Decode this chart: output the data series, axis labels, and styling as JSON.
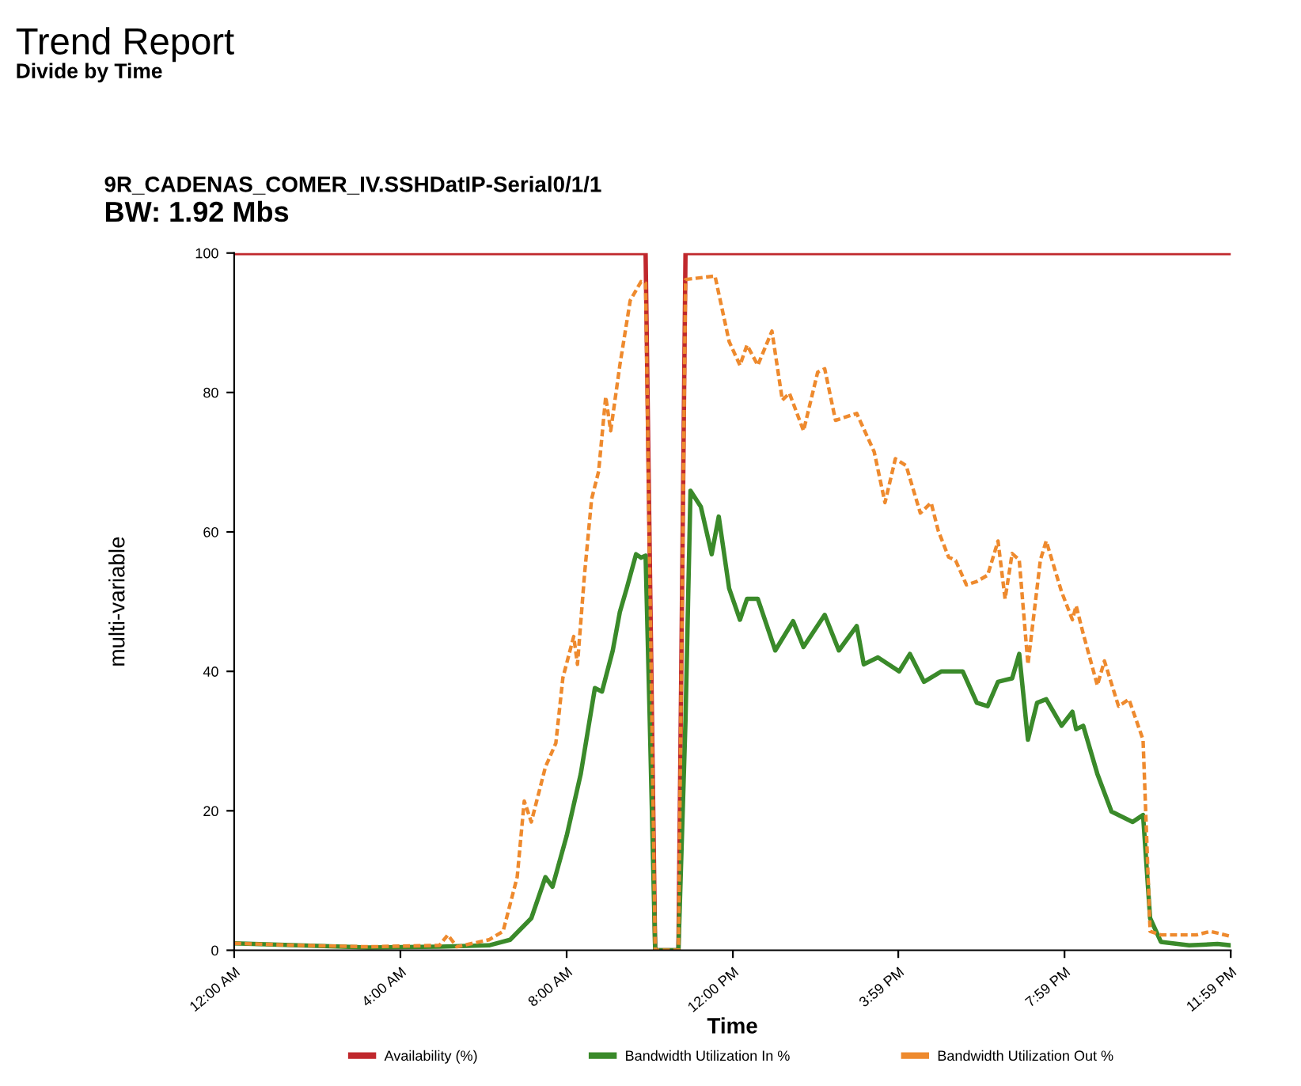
{
  "chart_data": {
    "type": "line",
    "title": "Trend Report",
    "subtitle": "Divide by Time",
    "annotations": [
      "9R_CADENAS_COMER_IV.SSHDatIP-Serial0/1/1",
      "BW: 1.92 Mbs"
    ],
    "xlabel": "Time",
    "ylabel": "multi-variable",
    "xlim": [
      0,
      23.98
    ],
    "xticks": [
      {
        "value": 0,
        "label": "12:00 AM"
      },
      {
        "value": 4,
        "label": "4:00 AM"
      },
      {
        "value": 8,
        "label": "8:00 AM"
      },
      {
        "value": 12,
        "label": "12:00 PM"
      },
      {
        "value": 15.98,
        "label": "3:59 PM"
      },
      {
        "value": 19.98,
        "label": "7:59 PM"
      },
      {
        "value": 23.98,
        "label": "11:59 PM"
      }
    ],
    "ylim": [
      0,
      100
    ],
    "yticks": [
      0,
      20,
      40,
      60,
      80,
      100
    ],
    "grid": false,
    "legend": "bottom",
    "marker": "none",
    "series": [
      {
        "name": "Availability (%)",
        "color": "#c0282d",
        "line_style": "solid",
        "x": [
          0,
          9.9,
          10.13,
          10.69,
          10.86,
          23.98
        ],
        "values": [
          100,
          100,
          0,
          0,
          100,
          100
        ]
      },
      {
        "name": "Bandwidth Utilization In %",
        "color": "#3a8a2a",
        "line_style": "solid",
        "x": [
          0,
          1.53,
          3.23,
          4.94,
          6.13,
          6.64,
          7.15,
          7.49,
          7.66,
          8.0,
          8.34,
          8.68,
          8.85,
          9.11,
          9.28,
          9.45,
          9.67,
          9.79,
          9.9,
          10.0,
          10.13,
          10.69,
          10.86,
          10.98,
          11.23,
          11.49,
          11.66,
          11.91,
          12.17,
          12.34,
          12.6,
          13.02,
          13.45,
          13.7,
          14.21,
          14.55,
          14.98,
          15.15,
          15.49,
          16.0,
          16.26,
          16.6,
          17.02,
          17.53,
          17.87,
          18.13,
          18.38,
          18.72,
          18.89,
          19.1,
          19.32,
          19.54,
          19.91,
          20.17,
          20.26,
          20.43,
          20.77,
          21.11,
          21.62,
          21.87,
          22.04,
          22.3,
          22.98,
          23.66,
          23.98
        ],
        "values": [
          1.0,
          0.7,
          0.4,
          0.5,
          0.7,
          1.5,
          4.6,
          10.5,
          9.1,
          16.4,
          25.3,
          37.6,
          37.1,
          43,
          48.5,
          52,
          56.8,
          56.3,
          56.6,
          33,
          0,
          0,
          33,
          65.9,
          63.6,
          56.8,
          62.2,
          51.9,
          47.4,
          50.4,
          50.4,
          43,
          47.2,
          43.5,
          48.1,
          43,
          46.5,
          41,
          42,
          40,
          42.5,
          38.5,
          40,
          40,
          35.5,
          35,
          38.5,
          39,
          42.5,
          30.2,
          35.5,
          36,
          32.2,
          34.2,
          31.7,
          32.2,
          25.3,
          19.9,
          18.4,
          19.4,
          4.6,
          1.2,
          0.7,
          0.9,
          0.7
        ]
      },
      {
        "name": "Bandwidth Utilization Out %",
        "color": "#ee8a2e",
        "line_style": "dashed",
        "x": [
          0,
          1.53,
          3.23,
          4.94,
          5.14,
          5.36,
          6.13,
          6.47,
          6.81,
          6.98,
          7.15,
          7.49,
          7.74,
          7.91,
          8.17,
          8.26,
          8.43,
          8.6,
          8.77,
          8.94,
          9.06,
          9.28,
          9.53,
          9.79,
          9.9,
          10.13,
          10.69,
          10.86,
          11.57,
          11.91,
          12.17,
          12.34,
          12.6,
          12.94,
          13.19,
          13.36,
          13.7,
          14.04,
          14.21,
          14.47,
          14.98,
          15.4,
          15.66,
          15.91,
          16.17,
          16.51,
          16.77,
          16.94,
          17.19,
          17.36,
          17.62,
          17.87,
          18.13,
          18.38,
          18.55,
          18.72,
          18.89,
          19.1,
          19.4,
          19.54,
          19.91,
          20.17,
          20.26,
          20.43,
          20.77,
          20.94,
          21.28,
          21.53,
          21.87,
          22.04,
          22.3,
          23.15,
          23.49,
          23.98
        ],
        "values": [
          1.0,
          0.7,
          0.5,
          0.7,
          2.2,
          0.5,
          1.5,
          2.7,
          10.5,
          21.4,
          18.4,
          26.3,
          29.7,
          39.1,
          45,
          41,
          53.9,
          64.7,
          68.7,
          79.4,
          74.5,
          83.9,
          93.2,
          95.9,
          95.7,
          0,
          0,
          96.2,
          96.7,
          87.3,
          83.9,
          86.8,
          83.9,
          88.8,
          78.9,
          79.9,
          74.5,
          82.9,
          83.4,
          76,
          77,
          71.5,
          64.2,
          70.5,
          69.5,
          62.7,
          64.2,
          60.2,
          56.4,
          55.9,
          52.4,
          52.9,
          53.8,
          58.7,
          50.4,
          56.9,
          56,
          41,
          56,
          58.7,
          51.4,
          47.4,
          49.4,
          45.4,
          38,
          41.5,
          35,
          36,
          30.2,
          2.7,
          2.2,
          2.2,
          2.7,
          2.0
        ]
      }
    ]
  }
}
